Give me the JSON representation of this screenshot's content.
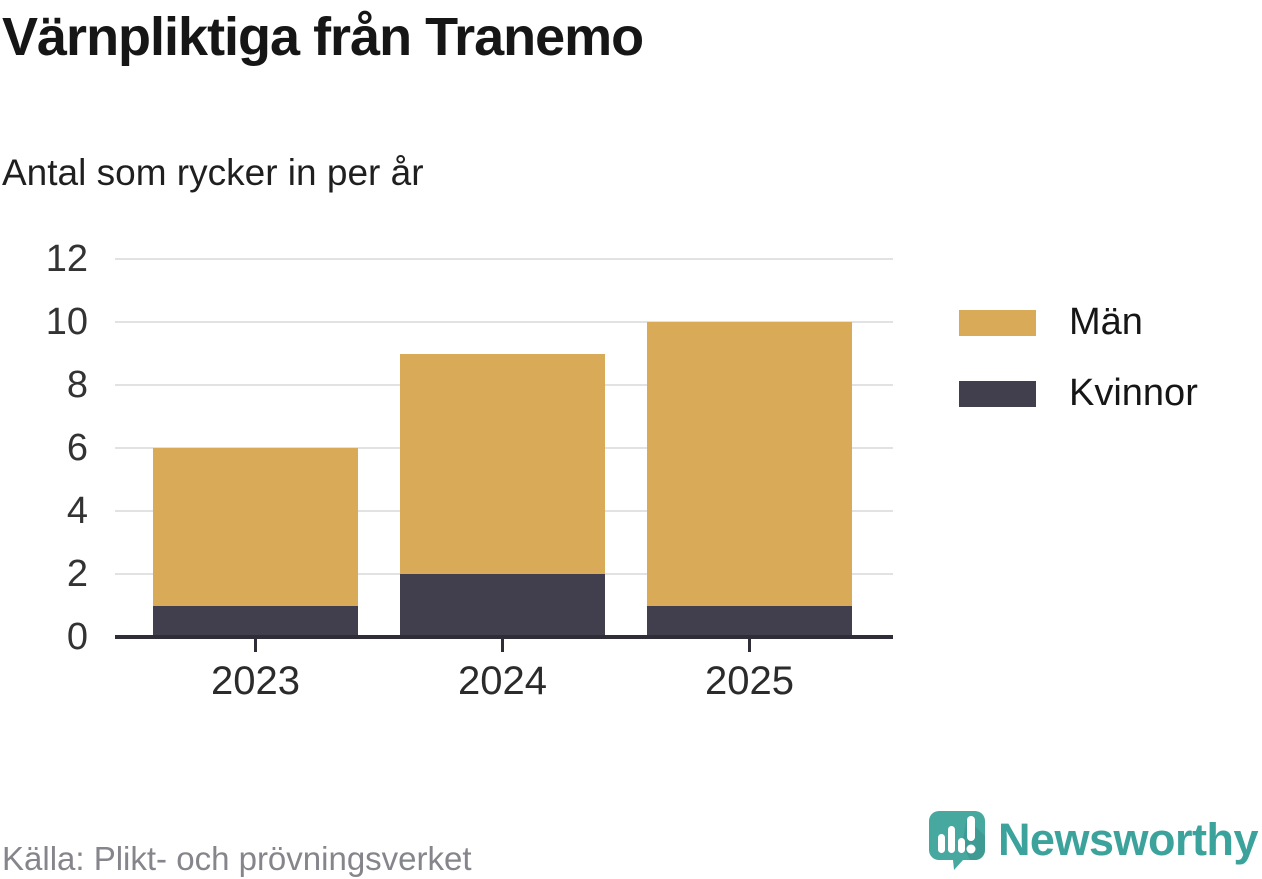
{
  "header": {
    "title": "Värnpliktiga från Tranemo",
    "subtitle": "Antal som rycker in per år"
  },
  "chart_data": {
    "type": "bar",
    "stacked": true,
    "title": "Värnpliktiga från Tranemo",
    "subtitle": "Antal som rycker in per år",
    "categories": [
      "2023",
      "2024",
      "2025"
    ],
    "series": [
      {
        "name": "Kvinnor",
        "color": "#413f4e",
        "values": [
          1,
          2,
          1
        ]
      },
      {
        "name": "Män",
        "color": "#d9ab58",
        "values": [
          5,
          7,
          9
        ]
      }
    ],
    "totals": [
      6,
      9,
      10
    ],
    "legend": [
      "Män",
      "Kvinnor"
    ],
    "legend_position": "right",
    "yticks": [
      0,
      2,
      4,
      6,
      8,
      10,
      12
    ],
    "ylim": [
      0,
      12
    ],
    "grid": "horizontal"
  },
  "footer": {
    "source": "Källa: Plikt- och prövningsverket",
    "brand": "Newsworthy"
  },
  "colors": {
    "men": "#d9ab58",
    "women": "#413f4e",
    "axis": "#2e2d38",
    "gridline": "#e2e2e2",
    "tick_label": "#333333",
    "brand_teal": "#3ba39b"
  }
}
